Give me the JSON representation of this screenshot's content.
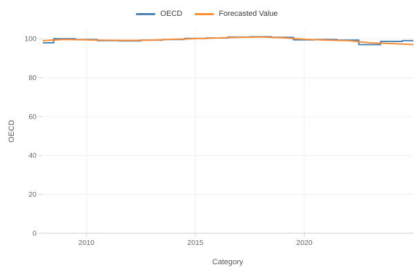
{
  "chart_data": {
    "type": "line",
    "title": "",
    "xlabel": "Category",
    "ylabel": "OECD",
    "x": [
      2008,
      2009,
      2010,
      2011,
      2012,
      2013,
      2014,
      2015,
      2016,
      2017,
      2018,
      2019,
      2020,
      2021,
      2022,
      2023,
      2024,
      2025
    ],
    "series": [
      {
        "name": "OECD",
        "color": "#4c83b6",
        "interpolation": "step",
        "values": [
          97.9,
          100.0,
          99.6,
          99.0,
          98.9,
          99.3,
          99.6,
          100.1,
          100.4,
          100.8,
          101.0,
          100.7,
          99.4,
          99.6,
          99.3,
          97.0,
          98.6,
          99.0
        ]
      },
      {
        "name": "Forecasted Value",
        "color": "#fb8c34",
        "interpolation": "linear",
        "values": [
          99.0,
          99.6,
          99.4,
          99.2,
          99.1,
          99.3,
          99.7,
          100.0,
          100.4,
          100.7,
          100.9,
          100.5,
          99.7,
          99.3,
          99.0,
          97.9,
          97.5,
          97.0
        ]
      }
    ],
    "xlim": [
      2008,
      2025
    ],
    "ylim": [
      0,
      105
    ],
    "xticks": [
      2010,
      2015,
      2020
    ],
    "yticks": [
      0,
      20,
      40,
      60,
      80,
      100
    ],
    "grid": true,
    "legend_position": "top-center",
    "colors": {
      "grid": "#efefef",
      "axis": "#cccccc",
      "tick_text": "#666666",
      "axis_title": "#555555",
      "legend_text": "#3a3a3a"
    }
  }
}
